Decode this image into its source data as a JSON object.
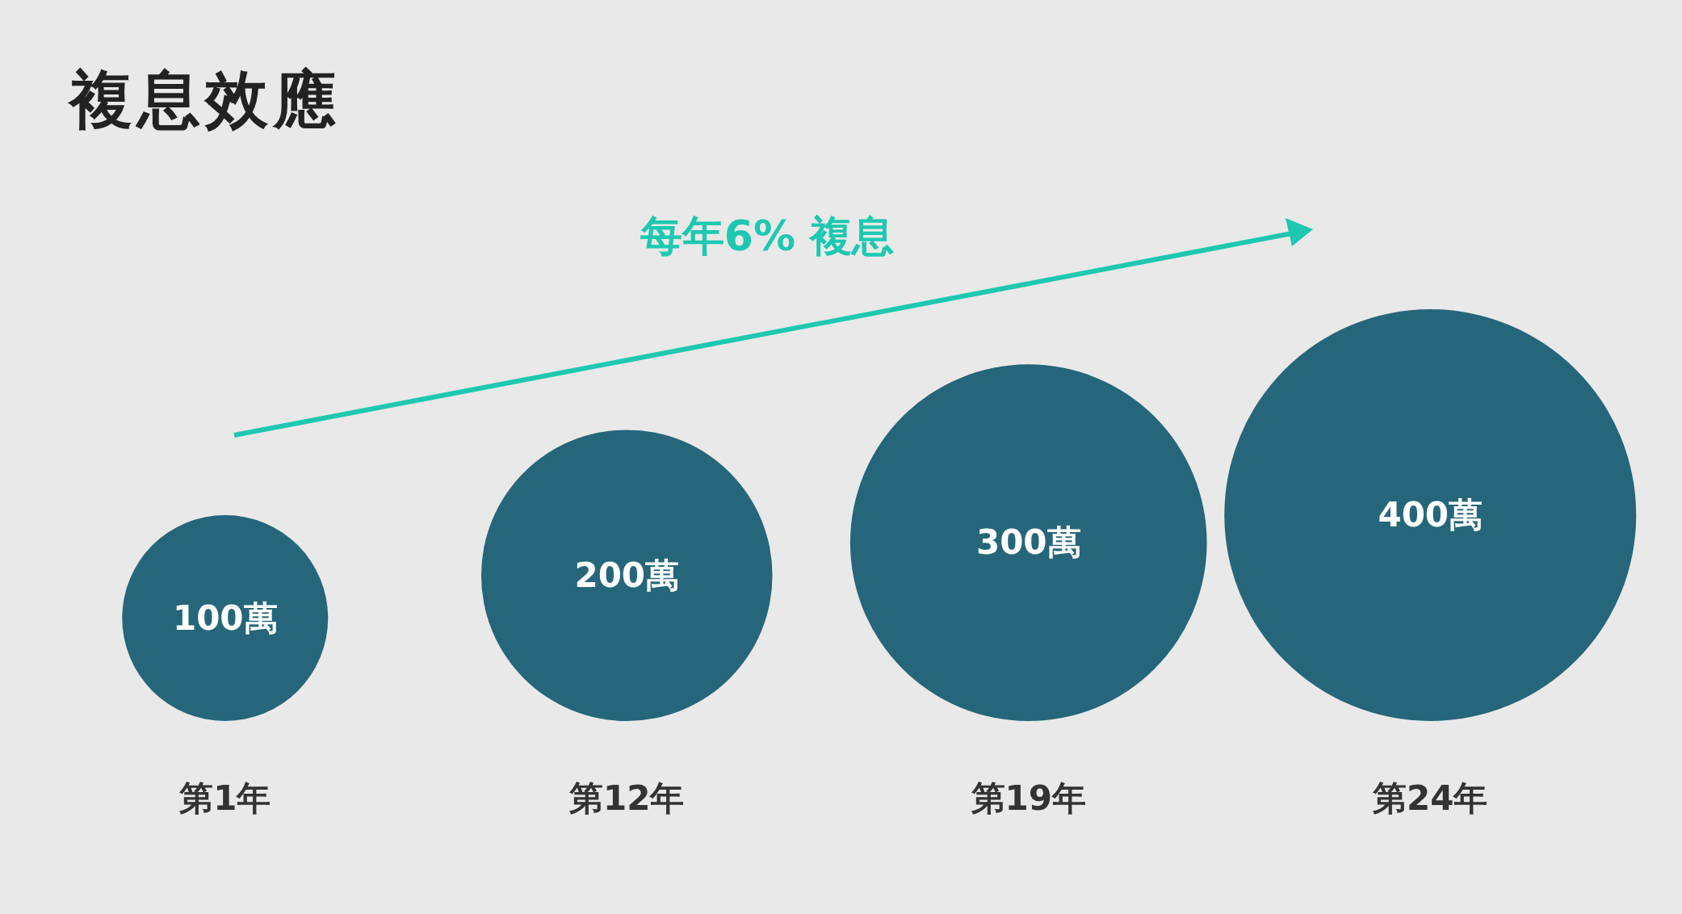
{
  "chart_data": {
    "type": "other",
    "title": "複息效應",
    "categories": [
      "第1年",
      "第12年",
      "第19年",
      "第24年"
    ],
    "values": [
      100,
      200,
      300,
      400
    ],
    "value_labels": [
      "100萬",
      "200萬",
      "300萬",
      "400萬"
    ],
    "color": "#26667a",
    "annotations": [
      "每年6% 複息"
    ]
  }
}
